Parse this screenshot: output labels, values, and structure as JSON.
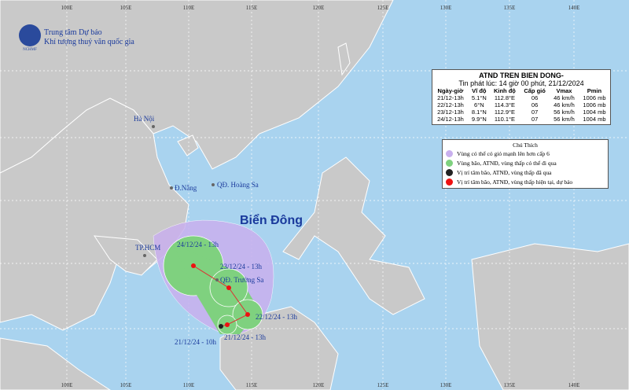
{
  "header": {
    "org": "Trung tâm Dự báo",
    "org2": "Khí tượng thuỷ văn quốc gia",
    "logo": "NCHMF"
  },
  "info": {
    "title": "ATND TREN BIEN DONG-",
    "subtitle": "Tin phát lúc: 14 giờ 00 phút, 21/12/2024",
    "columns": [
      "Ngày-giờ",
      "Vĩ độ",
      "Kinh độ",
      "Cấp gió",
      "Vmax",
      "Pmin"
    ],
    "rows": [
      [
        "21/12-13h",
        "5.1°N",
        "112.8°E",
        "06",
        "46 km/h",
        "1006 mb"
      ],
      [
        "22/12-13h",
        "6°N",
        "114.3°E",
        "06",
        "46 km/h",
        "1006 mb"
      ],
      [
        "23/12-13h",
        "8.1°N",
        "112.9°E",
        "07",
        "56 km/h",
        "1004 mb"
      ],
      [
        "24/12-13h",
        "9.9°N",
        "110.1°E",
        "07",
        "56 km/h",
        "1004 mb"
      ]
    ]
  },
  "legend": {
    "title": "Chú Thích",
    "items": [
      "Vùng có thể có gió mạnh lên hơn cấp 6",
      "Vùng bão, ATNĐ, vùng thấp có thể đi qua",
      "Vị trí tâm bão, ATNĐ, vùng thấp đã qua",
      "Vị trí tâm bão, ATNĐ, vùng thấp hiện tại, dự báo"
    ]
  },
  "grid": {
    "longitudes": [
      "100E",
      "105E",
      "110E",
      "115E",
      "120E",
      "125E",
      "130E",
      "135E",
      "140E"
    ]
  },
  "places": {
    "hanoi": "Hà Nội",
    "danang": "Đ.Nẵng",
    "hoangsa": "QĐ. Hoàng Sa",
    "hcm": "TP.HCM",
    "truongsa": "QĐ. Trường Sa",
    "sea": "Biển Đông"
  },
  "track": {
    "labels": [
      "24/12/24 - 13h",
      "23/12/24 - 13h",
      "22/12/24 - 13h",
      "21/12/24 - 13h",
      "21/12/24 - 10h"
    ]
  }
}
